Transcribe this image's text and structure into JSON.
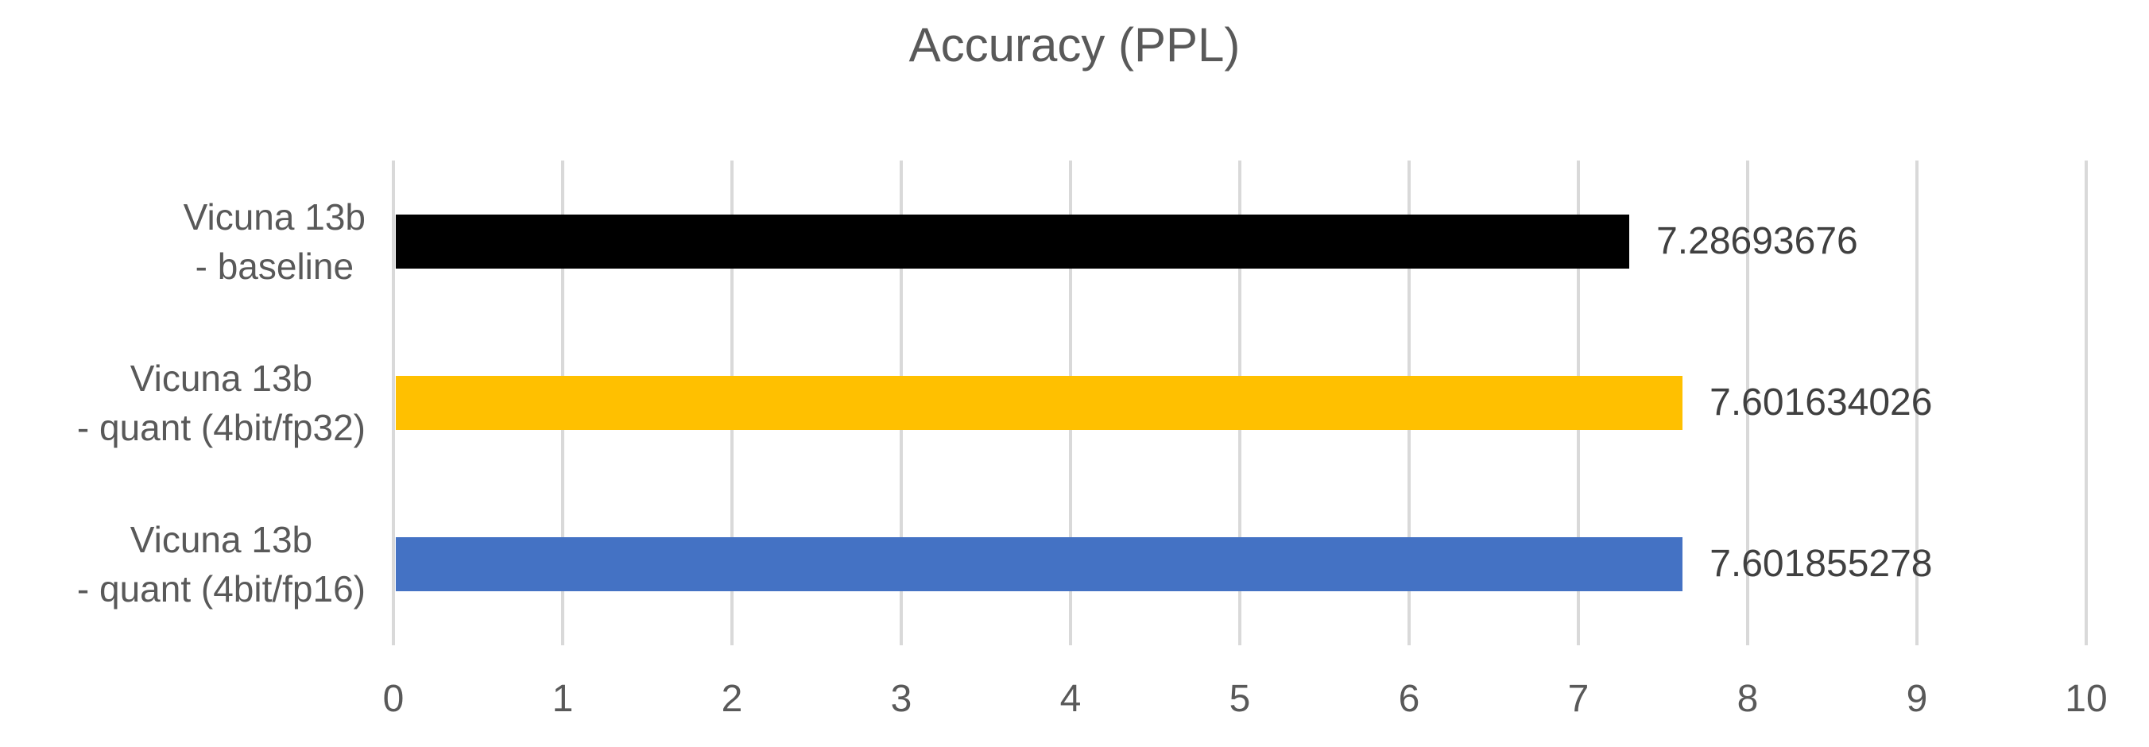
{
  "chart_data": {
    "type": "bar",
    "orientation": "horizontal",
    "title": "Accuracy (PPL)",
    "categories": [
      [
        "Vicuna 13b",
        "- baseline"
      ],
      [
        "Vicuna 13b",
        "- quant (4bit/fp32)"
      ],
      [
        "Vicuna 13b",
        "- quant (4bit/fp16)"
      ]
    ],
    "values": [
      7.28693676,
      7.601634026,
      7.601855278
    ],
    "value_labels": [
      "7.28693676",
      "7.601634026",
      "7.601855278"
    ],
    "bar_colors": [
      "#000000",
      "#FFC000",
      "#4472C4"
    ],
    "xlabel": "",
    "ylabel": "",
    "xlim": [
      0,
      10
    ],
    "xticks": [
      "0",
      "1",
      "2",
      "3",
      "4",
      "5",
      "6",
      "7",
      "8",
      "9",
      "10"
    ],
    "grid": "vertical",
    "legend": "none",
    "style": {
      "title_color": "#595959",
      "axis_text_color": "#595959",
      "value_label_color": "#404040",
      "gridline_color": "#D9D9D9",
      "background": "#FFFFFF"
    }
  }
}
